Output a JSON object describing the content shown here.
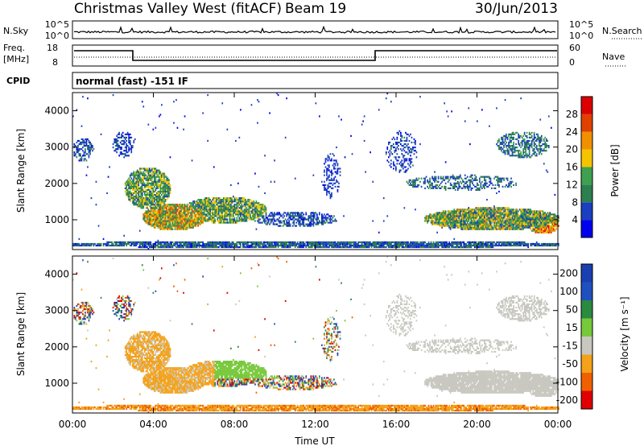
{
  "header": {
    "title": "Christmas Valley West (fitACF)",
    "beam": "Beam 19",
    "date": "30/Jun/2013"
  },
  "noise_panel": {
    "left_label": "N.Sky",
    "right_label": "N.Search",
    "left_ticks": [
      "10^5",
      "10^0"
    ],
    "right_ticks": [
      "10^5",
      "10^0"
    ]
  },
  "freq_panel": {
    "left_label_1": "Freq.",
    "left_label_2": "[MHz]",
    "right_label": "Nave",
    "left_ticks": [
      "18",
      "8"
    ],
    "right_ticks": [
      "60",
      "0"
    ]
  },
  "cpid_panel": {
    "label": "CPID",
    "text": "normal (fast) -151 IF"
  },
  "colors": {
    "power_scale": [
      "#0000ee",
      "#1a3fbf",
      "#2e7f4f",
      "#3fa050",
      "#f5c400",
      "#f09000",
      "#e04000",
      "#dd0000"
    ],
    "velocity_scale": [
      "#e00000",
      "#f06000",
      "#f4a21a",
      "#c8c8c0",
      "#78c83c",
      "#2a8a40",
      "#2050c0",
      "#1a3fb0"
    ]
  },
  "chart_data": [
    {
      "type": "heatmap",
      "name": "power",
      "xlabel": "",
      "ylabel": "Slant Range [km]",
      "xlim": [
        0,
        24
      ],
      "ylim": [
        180,
        4500
      ],
      "yticks": [
        "1000",
        "2000",
        "3000",
        "4000"
      ],
      "colorbar_label": "Power [dB]",
      "colorbar_ticks": [
        "4",
        "8",
        "12",
        "16",
        "20",
        "24",
        "28"
      ],
      "colorbar_range": [
        0,
        32
      ]
    },
    {
      "type": "heatmap",
      "name": "velocity",
      "xlabel": "Time UT",
      "ylabel": "Slant Range [km]",
      "xlim": [
        0,
        24
      ],
      "ylim": [
        180,
        4500
      ],
      "xticks": [
        "00:00",
        "04:00",
        "08:00",
        "12:00",
        "16:00",
        "20:00",
        "00:00"
      ],
      "yticks": [
        "1000",
        "2000",
        "3000",
        "4000"
      ],
      "colorbar_label": "Velocity [m s⁻¹]",
      "colorbar_ticks": [
        "200",
        "100",
        "50",
        "15",
        "-15",
        "-50",
        "-100",
        "-200"
      ]
    }
  ]
}
